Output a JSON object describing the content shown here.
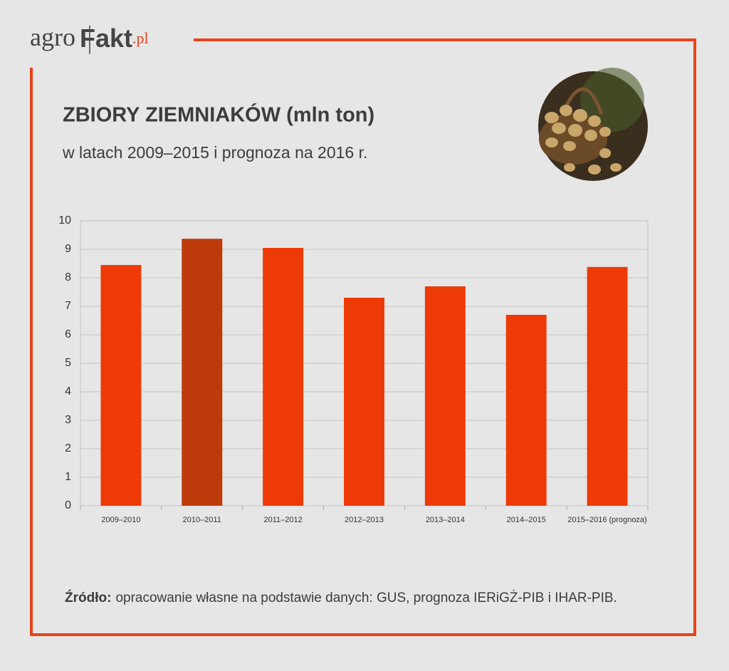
{
  "logo": {
    "part1": "agro",
    "part2": "Fakt",
    "part3": ".pl"
  },
  "chart_data": {
    "type": "bar",
    "title": "ZBIORY ZIEMNIAKÓW (mln ton)",
    "subtitle": "w latach 2009–2015 i prognoza na 2016 r.",
    "categories": [
      "2009–2010",
      "2010–2011",
      "2011–2012",
      "2012–2013",
      "2013–2014",
      "2014–2015",
      "2015–2016 (prognoza)"
    ],
    "values": [
      8.45,
      9.37,
      9.05,
      7.3,
      7.7,
      6.7,
      8.38
    ],
    "colors": [
      "#ee3a06",
      "#bd3a0a",
      "#ee3a06",
      "#ee3a06",
      "#ee3a06",
      "#ee3a06",
      "#ee3a06"
    ],
    "ylim": [
      0,
      10
    ],
    "yticks": [
      0,
      1,
      2,
      3,
      4,
      5,
      6,
      7,
      8,
      9,
      10
    ],
    "grid": true,
    "source": {
      "label": "Źródło:",
      "text": "opracowanie własne na podstawie danych: GUS, prognoza IERiGŻ-PIB i IHAR-PIB."
    }
  }
}
